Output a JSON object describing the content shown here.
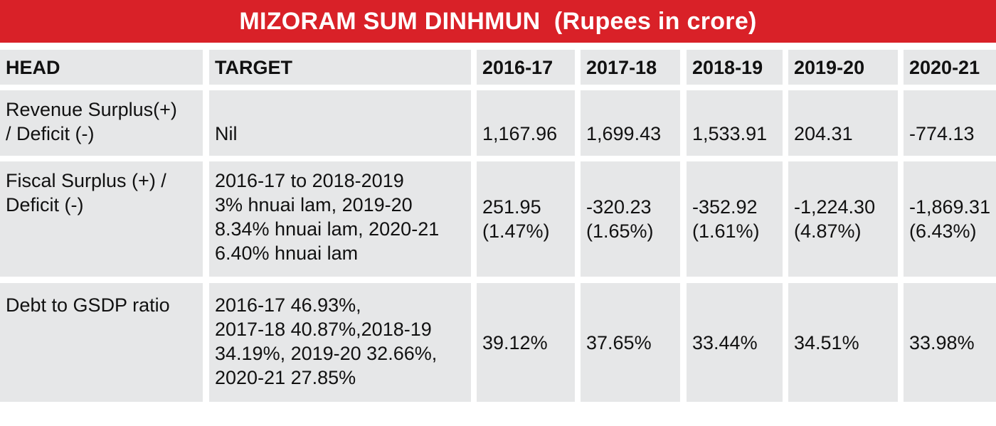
{
  "title": "MIZORAM SUM DINHMUN  (Rupees in crore)",
  "columns": {
    "head": "HEAD",
    "target": "TARGET",
    "years": [
      "2016-17",
      "2017-18",
      "2018-19",
      "2019-20",
      "2020-21"
    ]
  },
  "rows": [
    {
      "head": "Revenue Surplus(+)\n/ Deficit (-)",
      "target": "Nil",
      "values": [
        "1,167.96",
        "1,699.43",
        "1,533.91",
        "204.31",
        "-774.13"
      ]
    },
    {
      "head": "Fiscal Surplus (+) /\nDeficit (-)",
      "target": "2016-17 to 2018-2019\n3% hnuai lam, 2019-20\n8.34% hnuai lam, 2020-21\n6.40% hnuai lam",
      "values": [
        "251.95\n(1.47%)",
        "-320.23\n(1.65%)",
        "-352.92\n(1.61%)",
        "-1,224.30\n(4.87%)",
        "-1,869.31\n(6.43%)"
      ]
    },
    {
      "head": "Debt to GSDP ratio",
      "target": "2016-17 46.93%,\n2017-18 40.87%,2018-19\n34.19%, 2019-20 32.66%,\n2020-21 27.85%",
      "values": [
        "39.12%",
        "37.65%",
        "33.44%",
        "34.51%",
        "33.98%"
      ]
    }
  ],
  "colors": {
    "title_bg": "#d92128",
    "title_text": "#ffffff",
    "cell_bg": "#e6e7e8",
    "text": "#111111"
  }
}
